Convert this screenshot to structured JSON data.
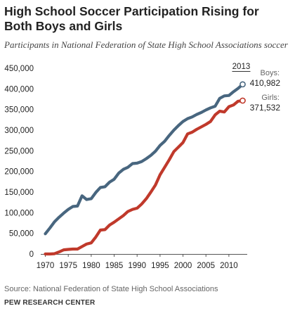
{
  "header": {
    "title": "High School Soccer Participation Rising for Both Boys and Girls",
    "subtitle": "Participants in National Federation of State High School Associations soccer"
  },
  "footer": {
    "source": "Source: National Federation of State High School Associations",
    "brand": "PEW RESEARCH CENTER"
  },
  "chart_data": {
    "type": "line",
    "title": "High School Soccer Participation Rising for Both Boys and Girls",
    "subtitle": "Participants in National Federation of State High School Associations soccer",
    "xlabel": "",
    "ylabel": "",
    "xlim": [
      1969,
      2014
    ],
    "ylim": [
      0,
      450000
    ],
    "x_ticks": [
      1970,
      1975,
      1980,
      1985,
      1990,
      1995,
      2000,
      2005,
      2010
    ],
    "y_ticks": [
      0,
      50000,
      100000,
      150000,
      200000,
      250000,
      300000,
      350000,
      400000,
      450000
    ],
    "y_tick_labels": [
      "0",
      "50,000",
      "100,000",
      "150,000",
      "200,000",
      "250,000",
      "300,000",
      "350,000",
      "400,000",
      "450,000"
    ],
    "grid": false,
    "legend": "end-labels",
    "year_marker": "2013",
    "series": [
      {
        "name": "Boys",
        "end_label": "410,982",
        "color": "#48667f",
        "x": [
          1970,
          1971,
          1972,
          1973,
          1974,
          1975,
          1976,
          1977,
          1978,
          1979,
          1980,
          1981,
          1982,
          1983,
          1984,
          1985,
          1986,
          1987,
          1988,
          1989,
          1990,
          1991,
          1992,
          1993,
          1994,
          1995,
          1996,
          1997,
          1998,
          1999,
          2000,
          2001,
          2002,
          2003,
          2004,
          2005,
          2006,
          2007,
          2008,
          2009,
          2010,
          2011,
          2012,
          2013
        ],
        "y": [
          49000,
          63000,
          78000,
          89000,
          99000,
          108000,
          115000,
          116000,
          141000,
          132000,
          134000,
          149000,
          161000,
          163000,
          174000,
          181000,
          196000,
          205000,
          210000,
          219000,
          220000,
          224000,
          231000,
          239000,
          249000,
          263000,
          273000,
          287000,
          300000,
          311000,
          321000,
          328000,
          332000,
          338000,
          343000,
          349000,
          354000,
          358000,
          377000,
          383000,
          384000,
          393000,
          401000,
          410982
        ]
      },
      {
        "name": "Girls",
        "end_label": "371,532",
        "color": "#c0392b",
        "x": [
          1970,
          1971,
          1972,
          1973,
          1974,
          1975,
          1976,
          1977,
          1978,
          1979,
          1980,
          1981,
          1982,
          1983,
          1984,
          1985,
          1986,
          1987,
          1988,
          1989,
          1990,
          1991,
          1992,
          1993,
          1994,
          1995,
          1996,
          1997,
          1998,
          1999,
          2000,
          2001,
          2002,
          2003,
          2004,
          2005,
          2006,
          2007,
          2008,
          2009,
          2010,
          2011,
          2012,
          2013
        ],
        "y": [
          0,
          0,
          700,
          5000,
          10000,
          11000,
          12000,
          12000,
          18000,
          24000,
          27000,
          41000,
          58000,
          59000,
          70000,
          77000,
          85000,
          93000,
          103000,
          108000,
          111000,
          121000,
          134000,
          150000,
          167000,
          192000,
          210000,
          228000,
          248000,
          259000,
          270000,
          291000,
          295000,
          302000,
          308000,
          314000,
          321000,
          337000,
          346000,
          344000,
          357000,
          361000,
          370000,
          371532
        ]
      }
    ]
  }
}
